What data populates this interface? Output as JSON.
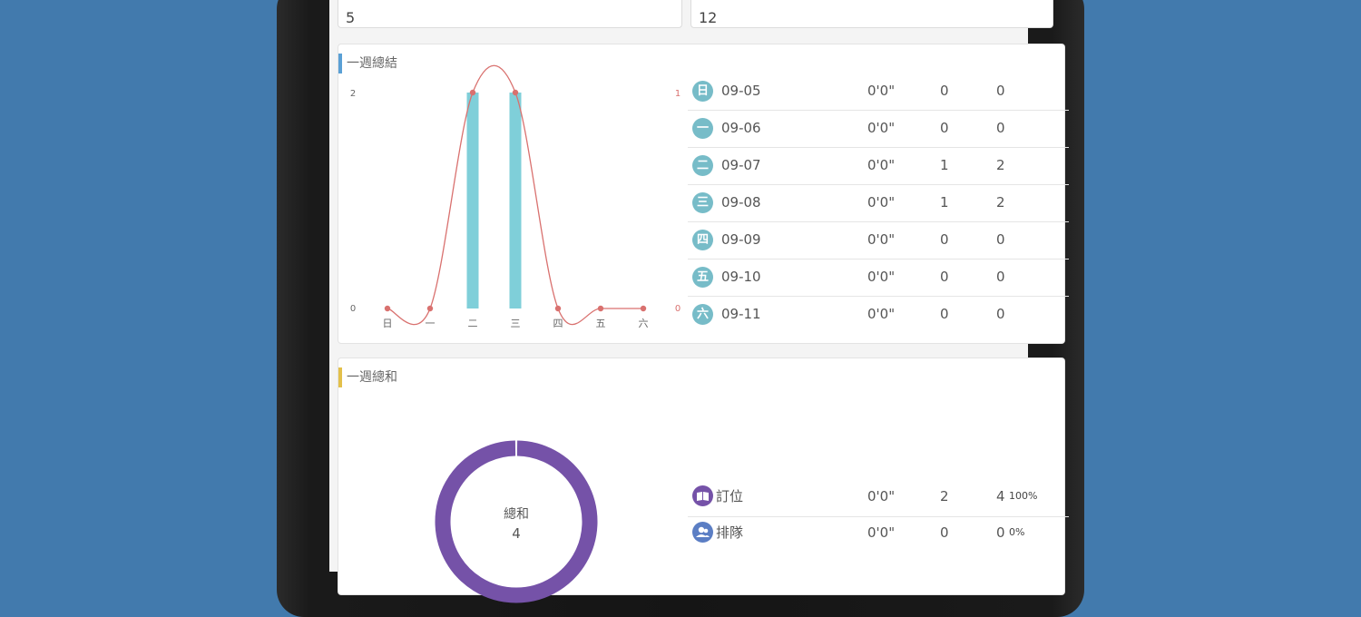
{
  "top_fields": {
    "left_value": "5",
    "right_value": "12"
  },
  "week_summary": {
    "title": "一週總結",
    "rows": [
      {
        "badge": "日",
        "date": "09-05",
        "time": "0'0\"",
        "count": "0",
        "people": "0"
      },
      {
        "badge": "一",
        "date": "09-06",
        "time": "0'0\"",
        "count": "0",
        "people": "0"
      },
      {
        "badge": "二",
        "date": "09-07",
        "time": "0'0\"",
        "count": "1",
        "people": "2"
      },
      {
        "badge": "三",
        "date": "09-08",
        "time": "0'0\"",
        "count": "1",
        "people": "2"
      },
      {
        "badge": "四",
        "date": "09-09",
        "time": "0'0\"",
        "count": "0",
        "people": "0"
      },
      {
        "badge": "五",
        "date": "09-10",
        "time": "0'0\"",
        "count": "0",
        "people": "0"
      },
      {
        "badge": "六",
        "date": "09-11",
        "time": "0'0\"",
        "count": "0",
        "people": "0"
      }
    ]
  },
  "chart_data": {
    "type": "bar",
    "categories": [
      "日",
      "一",
      "二",
      "三",
      "四",
      "五",
      "六"
    ],
    "series": [
      {
        "type": "bar",
        "values": [
          0,
          0,
          2,
          2,
          0,
          0,
          0
        ],
        "color": "#7fcfd9",
        "axis": "left"
      },
      {
        "type": "line",
        "values": [
          0,
          0,
          1,
          1,
          0,
          0,
          0
        ],
        "color": "#d9716f",
        "axis": "right"
      }
    ],
    "ylim_left": [
      0,
      2
    ],
    "ylim_right": [
      0,
      1
    ],
    "left_ticks": [
      "2",
      "0"
    ],
    "right_ticks": [
      "1",
      "0"
    ]
  },
  "week_total": {
    "title": "一週總和",
    "donut_label": "總和",
    "donut_value": "4",
    "donut_data": [
      {
        "label": "訂位",
        "value": 4,
        "color": "#7552a8"
      },
      {
        "label": "排隊",
        "value": 0,
        "color": "#5b7ec4"
      }
    ],
    "rows": [
      {
        "icon": "book-icon",
        "label": "訂位",
        "time": "0'0\"",
        "count": "2",
        "people": "4",
        "percent": "100%",
        "color": "#7552a8"
      },
      {
        "icon": "users-icon",
        "label": "排隊",
        "time": "0'0\"",
        "count": "0",
        "people": "0",
        "percent": "0%",
        "color": "#5b7ec4"
      }
    ]
  }
}
